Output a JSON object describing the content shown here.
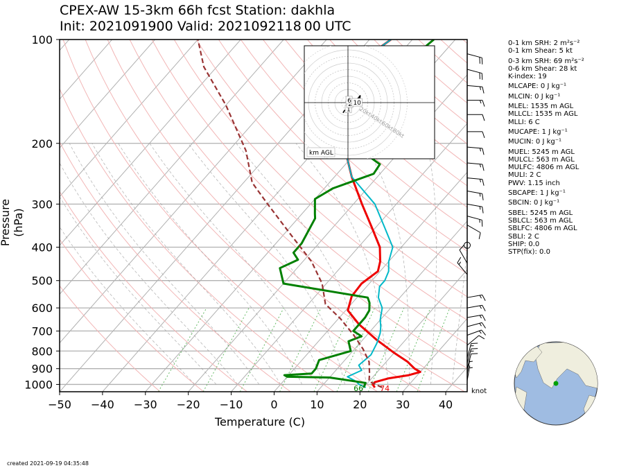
{
  "header": {
    "title_line1": "CPEX-AW 15-3km  66h fcst  Station: dakhla",
    "title_line2": "Init: 2021091900  Valid: 2021092118 00 UTC"
  },
  "footer": {
    "created": "created 2021-09-19 04:35:48"
  },
  "colors": {
    "temperature": "#ee0000",
    "dewpoint": "#008000",
    "virtual_temp": "#00b8c8",
    "parcel": "#993333",
    "dry_adiabat": "#f2b5b5",
    "moist_adiabat": "#999999",
    "mixing_ratio": "#66bb66",
    "ocean": "#9fbce2",
    "land": "#efeede"
  },
  "chart_data": {
    "type": "skew-t",
    "xlabel": "Temperature (C)",
    "ylabel": "Pressure (hPa)",
    "x_ticks": [
      "−50",
      "−40",
      "−30",
      "−20",
      "−10",
      "0",
      "10",
      "20",
      "30",
      "40"
    ],
    "x_tick_values": [
      -50,
      -40,
      -30,
      -20,
      -10,
      0,
      10,
      20,
      30,
      40
    ],
    "y_ticks": [
      "100",
      "200",
      "300",
      "400",
      "500",
      "600",
      "700",
      "800",
      "900",
      "1000"
    ],
    "y_tick_values": [
      100,
      200,
      300,
      400,
      500,
      600,
      700,
      800,
      900,
      1000
    ],
    "xlim": [
      -50,
      45
    ],
    "ylim": [
      1050,
      100
    ],
    "y_scale": "log",
    "wind_unit_label": "knot",
    "surface_labels": {
      "dewpoint": "66",
      "temperature": "74"
    },
    "series": [
      {
        "key": "temperature",
        "points": [
          [
            22.6,
            1021
          ],
          [
            21.5,
            1000
          ],
          [
            21.5,
            985
          ],
          [
            24,
            960
          ],
          [
            28,
            940
          ],
          [
            30,
            920
          ],
          [
            28,
            900
          ],
          [
            25,
            860
          ],
          [
            20,
            810
          ],
          [
            13,
            740
          ],
          [
            6,
            670
          ],
          [
            0.5,
            610
          ],
          [
            -1.5,
            555
          ],
          [
            -1.8,
            510
          ],
          [
            -0.5,
            470
          ],
          [
            -2,
            440
          ],
          [
            -5,
            400
          ],
          [
            -11,
            350
          ],
          [
            -18,
            300
          ],
          [
            -26,
            250
          ],
          [
            -31,
            220
          ],
          [
            -36,
            200
          ],
          [
            -45,
            150
          ],
          [
            -47,
            130
          ],
          [
            -48,
            118
          ],
          [
            -45,
            100
          ]
        ]
      },
      {
        "key": "virtual_temp",
        "points": [
          [
            20.5,
            1021
          ],
          [
            18.3,
            1000
          ],
          [
            17,
            980
          ],
          [
            14,
            950
          ],
          [
            16,
            910
          ],
          [
            14.3,
            880
          ],
          [
            15,
            820
          ],
          [
            14,
            760
          ],
          [
            12.7,
            710
          ],
          [
            11.5,
            680
          ],
          [
            10,
            650
          ],
          [
            8,
            600
          ],
          [
            5,
            560
          ],
          [
            3,
            520
          ],
          [
            3,
            500
          ],
          [
            2,
            470
          ],
          [
            0,
            440
          ],
          [
            -2,
            400
          ],
          [
            -8,
            350
          ],
          [
            -15,
            300
          ],
          [
            -26,
            250
          ],
          [
            -31,
            220
          ],
          [
            -36,
            200
          ],
          [
            -45,
            150
          ],
          [
            -47,
            130
          ],
          [
            -48,
            118
          ],
          [
            -45,
            100
          ]
        ]
      },
      {
        "key": "dewpoint",
        "points": [
          [
            20,
            1021
          ],
          [
            19.5,
            990
          ],
          [
            10,
            955
          ],
          [
            0,
            950
          ],
          [
            -1,
            940
          ],
          [
            5,
            930
          ],
          [
            5,
            900
          ],
          [
            4,
            850
          ],
          [
            9.5,
            800
          ],
          [
            7,
            750
          ],
          [
            9,
            725
          ],
          [
            6,
            700
          ],
          [
            6,
            680
          ],
          [
            6,
            640
          ],
          [
            5.5,
            610
          ],
          [
            4,
            580
          ],
          [
            2.5,
            560
          ],
          [
            -20,
            510
          ],
          [
            -24,
            460
          ],
          [
            -21.5,
            435
          ],
          [
            -24,
            415
          ],
          [
            -24,
            390
          ],
          [
            -26,
            330
          ],
          [
            -27,
            320
          ],
          [
            -30,
            290
          ],
          [
            -28,
            270
          ],
          [
            -21.5,
            245
          ],
          [
            -22,
            230
          ],
          [
            -33,
            200
          ],
          [
            -35,
            180
          ],
          [
            -35,
            170
          ],
          [
            -36,
            140
          ],
          [
            -37,
            120
          ],
          [
            -35,
            100
          ]
        ]
      },
      {
        "key": "parcel",
        "points": [
          [
            24.3,
            1021
          ],
          [
            20,
            980
          ],
          [
            18.5,
            930
          ],
          [
            16,
            860
          ],
          [
            12,
            790
          ],
          [
            7,
            720
          ],
          [
            0.5,
            645
          ],
          [
            -6,
            585
          ],
          [
            -11,
            510
          ],
          [
            -18,
            440
          ],
          [
            -28,
            370
          ],
          [
            -40,
            300
          ],
          [
            -48,
            260
          ],
          [
            -56,
            210
          ],
          [
            -70,
            155
          ],
          [
            -83,
            120
          ],
          [
            -90,
            100
          ]
        ]
      }
    ],
    "wind_barbs": [
      {
        "p": 110,
        "dir": 105,
        "kt": 20
      },
      {
        "p": 122,
        "dir": 105,
        "kt": 20
      },
      {
        "p": 136,
        "dir": 95,
        "kt": 15
      },
      {
        "p": 150,
        "dir": 90,
        "kt": 15
      },
      {
        "p": 165,
        "dir": 90,
        "kt": 10
      },
      {
        "p": 185,
        "dir": 90,
        "kt": 10
      },
      {
        "p": 205,
        "dir": 95,
        "kt": 15
      },
      {
        "p": 228,
        "dir": 95,
        "kt": 15
      },
      {
        "p": 252,
        "dir": 95,
        "kt": 15
      },
      {
        "p": 275,
        "dir": 100,
        "kt": 15
      },
      {
        "p": 300,
        "dir": 100,
        "kt": 15
      },
      {
        "p": 325,
        "dir": 105,
        "kt": 15
      },
      {
        "p": 345,
        "dir": 120,
        "kt": 10
      },
      {
        "p": 395,
        "dir": 0,
        "kt": 0
      },
      {
        "p": 445,
        "dir": 330,
        "kt": 10
      },
      {
        "p": 480,
        "dir": 320,
        "kt": 15
      },
      {
        "p": 560,
        "dir": 80,
        "kt": 15
      },
      {
        "p": 600,
        "dir": 80,
        "kt": 15
      },
      {
        "p": 640,
        "dir": 80,
        "kt": 15
      },
      {
        "p": 680,
        "dir": 75,
        "kt": 15
      },
      {
        "p": 720,
        "dir": 70,
        "kt": 15
      },
      {
        "p": 770,
        "dir": 50,
        "kt": 10
      },
      {
        "p": 840,
        "dir": 15,
        "kt": 15
      },
      {
        "p": 870,
        "dir": 15,
        "kt": 15
      },
      {
        "p": 900,
        "dir": 15,
        "kt": 10
      },
      {
        "p": 935,
        "dir": 10,
        "kt": 5
      },
      {
        "p": 975,
        "dir": 10,
        "kt": 5
      }
    ],
    "hodograph": {
      "unit_label": "km AGL",
      "ring_labels": [
        "20kt",
        "40kt",
        "60kt",
        "80kt"
      ],
      "ring_speeds": [
        20,
        40,
        60,
        80
      ],
      "height_labels": [
        {
          "text": "1",
          "u": 1,
          "v": -9
        },
        {
          "text": "2",
          "u": 3,
          "v": -2
        },
        {
          "text": "6",
          "u": 2,
          "v": 3
        },
        {
          "text": "10",
          "u": 10,
          "v": 0
        }
      ],
      "trace": [
        [
          -7,
          -14
        ],
        [
          -6,
          -13
        ],
        [
          -5,
          -11
        ],
        [
          -3,
          -10
        ],
        [
          -1,
          -8
        ],
        [
          1,
          -6
        ],
        [
          3,
          -3
        ],
        [
          2,
          0
        ],
        [
          -1,
          1
        ],
        [
          -3,
          2
        ],
        [
          1,
          2
        ],
        [
          4,
          2
        ],
        [
          9,
          2
        ],
        [
          14,
          6
        ],
        [
          17,
          10
        ],
        [
          16,
          4
        ],
        [
          14,
          1
        ]
      ]
    }
  },
  "parameters": [
    {
      "label": "0-1 km SRH: 2 m²s⁻²",
      "gap": false
    },
    {
      "label": "0-1 km Shear: 5 kt",
      "gap": false
    },
    {
      "label": "0-3 km SRH: 69 m²s⁻²",
      "gap": true
    },
    {
      "label": "0-6 km Shear: 28 kt",
      "gap": false
    },
    {
      "label": "K-index: 19",
      "gap": false
    },
    {
      "label": "MLCAPE: 0 J kg⁻¹",
      "gap": true
    },
    {
      "label": "MLCIN: 0 J kg⁻¹",
      "gap": true
    },
    {
      "label": "MLEL: 1535 m AGL",
      "gap": true
    },
    {
      "label": "MLLCL: 1535 m AGL",
      "gap": false
    },
    {
      "label": "MLLI: 6 C",
      "gap": false
    },
    {
      "label": "MUCAPE: 1 J kg⁻¹",
      "gap": true
    },
    {
      "label": "MUCIN: 0 J kg⁻¹",
      "gap": true
    },
    {
      "label": "MUEL: 5245 m AGL",
      "gap": true
    },
    {
      "label": "MULCL: 563 m AGL",
      "gap": false
    },
    {
      "label": "MULFC: 4806 m AGL",
      "gap": false
    },
    {
      "label": "MULI: 2 C",
      "gap": false
    },
    {
      "label": "PWV: 1.15 inch",
      "gap": false
    },
    {
      "label": "SBCAPE: 1 J kg⁻¹",
      "gap": true
    },
    {
      "label": "SBCIN: 0 J kg⁻¹",
      "gap": true
    },
    {
      "label": "SBEL: 5245 m AGL",
      "gap": true
    },
    {
      "label": "SBLCL: 563 m AGL",
      "gap": false
    },
    {
      "label": "SBLFC: 4806 m AGL",
      "gap": false
    },
    {
      "label": "SBLI: 2 C",
      "gap": false
    },
    {
      "label": "SHIP: 0.0",
      "gap": false
    },
    {
      "label": "STP(fix): 0.0",
      "gap": false
    }
  ],
  "locator_map": {
    "station_lat": 23.7,
    "station_lon": -15.9
  }
}
